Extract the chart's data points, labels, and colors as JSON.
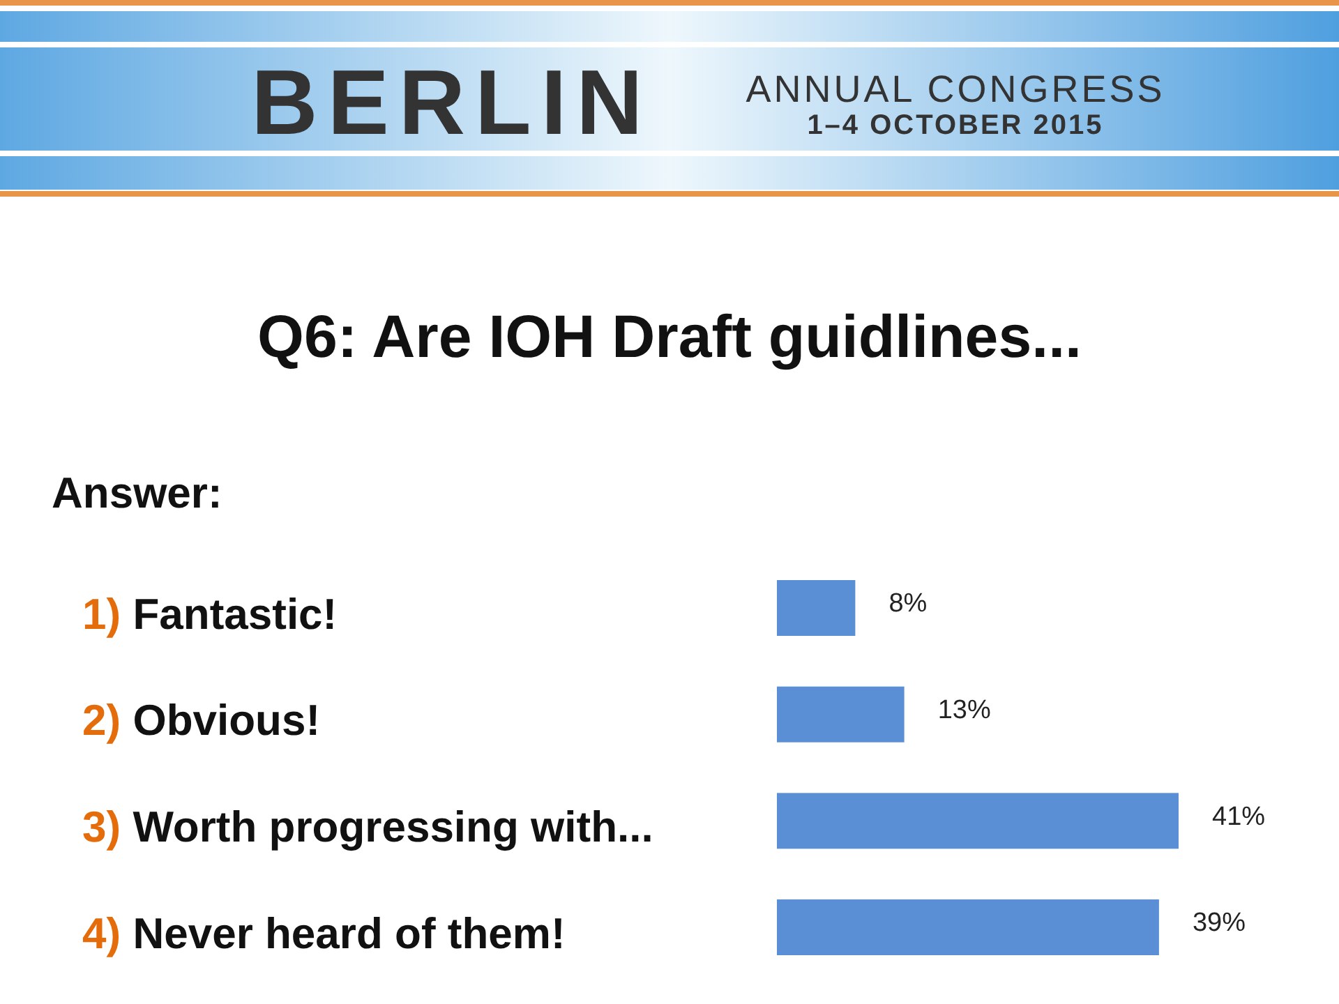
{
  "chart_data": {
    "type": "bar",
    "orientation": "horizontal",
    "title": "Q6: Are IOH Draft guidlines...",
    "subtitle": "Answer:",
    "categories": [
      "1) Fantastic!",
      "2) Obvious!",
      "3) Worth progressing with...",
      "4) Never heard of them!"
    ],
    "values": [
      8,
      13,
      41,
      39
    ],
    "value_labels": [
      "8%",
      "13%",
      "41%",
      "39%"
    ],
    "color": "#5a8fd6",
    "annotations": [
      "BERLIN",
      "ANNUAL CONGRESS",
      "1–4 OCTOBER 2015"
    ]
  }
}
